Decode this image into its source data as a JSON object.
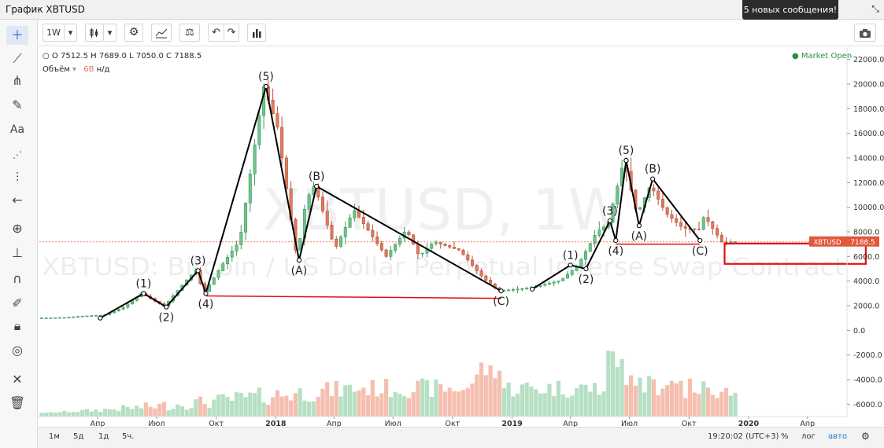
{
  "window": {
    "title": "График XBTUSD",
    "notification": "5 новых сообщения!"
  },
  "toolbar": {
    "interval": "1W",
    "buttons": [
      "interval",
      "candles",
      "settings",
      "indicators",
      "compare",
      "undo",
      "redo",
      "bar-chart",
      "camera"
    ]
  },
  "left_tools": [
    "crosshair",
    "line",
    "pitchfork",
    "brush",
    "text",
    "pattern",
    "measure",
    "arrow",
    "zoom",
    "ruler",
    "magnet",
    "pencil",
    "lock",
    "eye",
    "tools",
    "trash"
  ],
  "legend": {
    "o_label": "O",
    "o": "7512.5",
    "h_label": "H",
    "h": "7689.0",
    "l_label": "L",
    "l": "7050.0",
    "c_label": "C",
    "c": "7188.5",
    "volume_label": "Объём",
    "volume_value": "6B",
    "volume_na": "н/д"
  },
  "market_status": "Market Open",
  "watermark": {
    "symbol": "XBTUSD, 1W",
    "description": "XBTUSD: Bitcoin / US Dollar Perpetual Inverse Swap Contract"
  },
  "price_tag": {
    "symbol": "XBTUSD",
    "value": "7188.5"
  },
  "bottom": {
    "ranges": [
      "1м",
      "5д",
      "1д",
      "5ч."
    ],
    "clock": "19:20:02 (UTC+3)",
    "percent": "%",
    "log": "лог",
    "auto": "авто"
  },
  "colors": {
    "up": "#6fc48c",
    "down": "#e27a5f",
    "up_vol": "#b6e0c3",
    "down_vol": "#f5bfb0",
    "wave": "#000000",
    "support": "#e01010",
    "box": "#e01010"
  },
  "chart_data": {
    "type": "candlestick",
    "y_axis": {
      "ticks": [
        22000,
        20000,
        18000,
        16000,
        14000,
        12000,
        10000,
        8000,
        6000,
        4000,
        2000,
        0,
        -2000,
        -4000,
        -6000
      ],
      "tick_labels": [
        "22000.0",
        "20000.0",
        "18000.0",
        "16000.0",
        "14000.0",
        "12000.0",
        "10000.0",
        "8000.0",
        "6000.0",
        "4000.0",
        "2000.0",
        "0.0",
        "-2000.0",
        "-4000.0",
        "-6000.0"
      ],
      "range": [
        -7000,
        23000
      ]
    },
    "x_axis": {
      "labels": [
        {
          "t": "2017-04-01",
          "text": "Апр"
        },
        {
          "t": "2017-07-01",
          "text": "Июл"
        },
        {
          "t": "2017-10-01",
          "text": "Окт"
        },
        {
          "t": "2018-01-01",
          "text": "2018"
        },
        {
          "t": "2018-04-01",
          "text": "Апр"
        },
        {
          "t": "2018-07-01",
          "text": "Июл"
        },
        {
          "t": "2018-10-01",
          "text": "Окт"
        },
        {
          "t": "2019-01-01",
          "text": "2019"
        },
        {
          "t": "2019-04-01",
          "text": "Апр"
        },
        {
          "t": "2019-07-01",
          "text": "Июл"
        },
        {
          "t": "2019-10-01",
          "text": "Окт"
        },
        {
          "t": "2020-01-01",
          "text": "2020"
        },
        {
          "t": "2020-04-01",
          "text": "Апр"
        }
      ]
    },
    "price_path": [
      [
        "2017-01-01",
        1000
      ],
      [
        "2017-02-15",
        1050
      ],
      [
        "2017-03-10",
        1150
      ],
      [
        "2017-04-15",
        1250
      ],
      [
        "2017-05-15",
        1900
      ],
      [
        "2017-06-11",
        3000
      ],
      [
        "2017-07-16",
        1950
      ],
      [
        "2017-08-20",
        4100
      ],
      [
        "2017-09-03",
        4900
      ],
      [
        "2017-09-15",
        3000
      ],
      [
        "2017-10-20",
        5800
      ],
      [
        "2017-11-10",
        7300
      ],
      [
        "2017-12-17",
        19800
      ],
      [
        "2018-01-07",
        16500
      ],
      [
        "2018-02-06",
        5800
      ],
      [
        "2018-02-20",
        10500
      ],
      [
        "2018-03-05",
        11800
      ],
      [
        "2018-04-06",
        6600
      ],
      [
        "2018-05-05",
        9800
      ],
      [
        "2018-06-24",
        6000
      ],
      [
        "2018-07-25",
        8200
      ],
      [
        "2018-08-14",
        6000
      ],
      [
        "2018-09-05",
        7200
      ],
      [
        "2018-10-15",
        6500
      ],
      [
        "2018-11-20",
        4300
      ],
      [
        "2018-12-15",
        3200
      ],
      [
        "2019-02-01",
        3450
      ],
      [
        "2019-03-20",
        4050
      ],
      [
        "2019-04-15",
        5200
      ],
      [
        "2019-05-15",
        8000
      ],
      [
        "2019-06-01",
        8600
      ],
      [
        "2019-06-26",
        13800
      ],
      [
        "2019-07-16",
        9400
      ],
      [
        "2019-08-06",
        11800
      ],
      [
        "2019-08-30",
        9500
      ],
      [
        "2019-09-25",
        8300
      ],
      [
        "2019-10-20",
        8200
      ],
      [
        "2019-10-28",
        9300
      ],
      [
        "2019-11-25",
        7100
      ],
      [
        "2019-12-10",
        7188.5
      ]
    ],
    "waves": [
      {
        "name": "impulse-2017",
        "points": [
          {
            "t": "2017-04-05",
            "p": 1000,
            "label": "",
            "lpos": "none"
          },
          {
            "t": "2017-06-11",
            "p": 3000,
            "label": "(1)",
            "lpos": "above"
          },
          {
            "t": "2017-07-16",
            "p": 1900,
            "label": "(2)",
            "lpos": "below"
          },
          {
            "t": "2017-09-03",
            "p": 4850,
            "label": "(3)",
            "lpos": "above"
          },
          {
            "t": "2017-09-15",
            "p": 3000,
            "label": "(4)",
            "lpos": "below"
          },
          {
            "t": "2017-12-17",
            "p": 19800,
            "label": "(5)",
            "lpos": "above"
          }
        ]
      },
      {
        "name": "abc-2018",
        "points": [
          {
            "t": "2017-12-17",
            "p": 19800,
            "label": "",
            "lpos": "none"
          },
          {
            "t": "2018-02-06",
            "p": 5700,
            "label": "(A)",
            "lpos": "below"
          },
          {
            "t": "2018-03-05",
            "p": 11700,
            "label": "(B)",
            "lpos": "above"
          },
          {
            "t": "2018-12-15",
            "p": 3200,
            "label": "(C)",
            "lpos": "below"
          }
        ]
      },
      {
        "name": "impulse-2019",
        "points": [
          {
            "t": "2019-02-01",
            "p": 3350,
            "label": "",
            "lpos": "none"
          },
          {
            "t": "2019-04-01",
            "p": 5300,
            "label": "(1)",
            "lpos": "above"
          },
          {
            "t": "2019-04-25",
            "p": 5000,
            "label": "(2)",
            "lpos": "below"
          },
          {
            "t": "2019-06-01",
            "p": 8900,
            "label": "(3)",
            "lpos": "above"
          },
          {
            "t": "2019-06-10",
            "p": 7300,
            "label": "(4)",
            "lpos": "below"
          },
          {
            "t": "2019-06-26",
            "p": 13800,
            "label": "(5)",
            "lpos": "above"
          }
        ]
      },
      {
        "name": "abc-2019",
        "points": [
          {
            "t": "2019-06-26",
            "p": 13800,
            "label": "",
            "lpos": "none"
          },
          {
            "t": "2019-07-16",
            "p": 8500,
            "label": "(A)",
            "lpos": "below"
          },
          {
            "t": "2019-08-06",
            "p": 12300,
            "label": "(B)",
            "lpos": "above"
          },
          {
            "t": "2019-10-18",
            "p": 7300,
            "label": "(C)",
            "lpos": "below"
          }
        ]
      }
    ],
    "support_lines": [
      {
        "t1": "2017-09-15",
        "p1": 2800,
        "t2": "2018-12-15",
        "p2": 2600
      },
      {
        "t1": "2019-06-10",
        "p1": 7000,
        "t2": "2019-10-18",
        "p2": 7000
      }
    ],
    "target_box": {
      "t1": "2019-11-25",
      "t2": "2020-06-30",
      "p_low": 5400,
      "p_high": 7050
    },
    "current_price": 7188.5
  }
}
